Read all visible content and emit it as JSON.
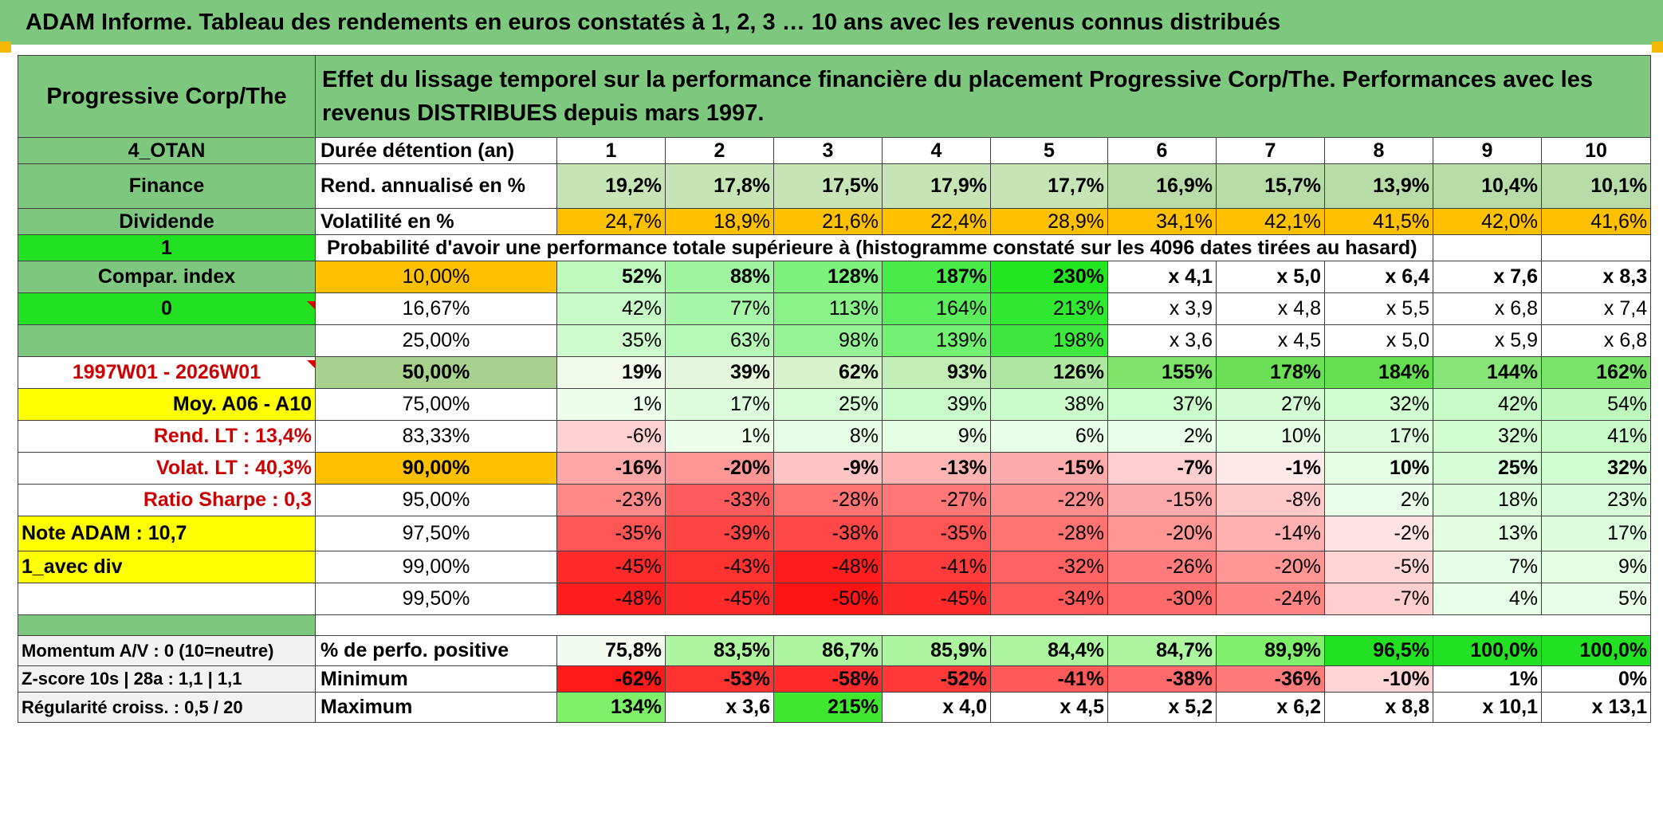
{
  "title": "ADAM Informe. Tableau des rendements en euros constatés à 1, 2, 3 … 10 ans avec les revenus connus distribués",
  "header": {
    "name": "Progressive Corp/The",
    "description": "Effet du lissage temporel sur la performance financière du placement Progressive Corp/The. Performances avec les revenus DISTRIBUES depuis mars 1997."
  },
  "side": {
    "code": "4_OTAN",
    "sector": "Finance",
    "type": "Dividende",
    "flag1": "1",
    "compar_index": "Compar. index",
    "flag0": "0",
    "blank": "",
    "period": "1997W01 - 2026W01",
    "moy": "Moy. A06 - A10",
    "rend_lt": "Rend. LT :    13,4%",
    "volat_lt": "Volat. LT :    40,3%",
    "sharpe": "Ratio Sharpe :    0,3",
    "note": "Note ADAM : 10,7",
    "avec_div": "1_avec div",
    "momentum": "Momentum A/V : 0 (10=neutre)",
    "zscore": "Z-score 10s | 28a : 1,1 | 1,1",
    "regularite": "Régularité croiss. : 0,5 / 20"
  },
  "rows": {
    "duree_label": "Durée détention (an)",
    "years": [
      "1",
      "2",
      "3",
      "4",
      "5",
      "6",
      "7",
      "8",
      "9",
      "10"
    ],
    "rend_label": "Rend. annualisé en %",
    "rend": [
      "19,2%",
      "17,8%",
      "17,5%",
      "17,9%",
      "17,7%",
      "16,9%",
      "15,7%",
      "13,9%",
      "10,4%",
      "10,1%"
    ],
    "volat_label": "Volatilité en %",
    "volat": [
      "24,7%",
      "18,9%",
      "21,6%",
      "22,4%",
      "28,9%",
      "34,1%",
      "42,1%",
      "41,5%",
      "42,0%",
      "41,6%"
    ],
    "prob_label": "Probabilité d'avoir une performance totale supérieure à (histogramme constaté sur les 4096 dates tirées au hasard)",
    "quantiles": [
      {
        "q": "10,00%",
        "v": [
          "52%",
          "88%",
          "128%",
          "187%",
          "230%",
          "x 4,1",
          "x 5,0",
          "x 6,4",
          "x 7,6",
          "x 8,3"
        ]
      },
      {
        "q": "16,67%",
        "v": [
          "42%",
          "77%",
          "113%",
          "164%",
          "213%",
          "x 3,9",
          "x 4,8",
          "x 5,5",
          "x 6,8",
          "x 7,4"
        ]
      },
      {
        "q": "25,00%",
        "v": [
          "35%",
          "63%",
          "98%",
          "139%",
          "198%",
          "x 3,6",
          "x 4,5",
          "x 5,0",
          "x 5,9",
          "x 6,8"
        ]
      },
      {
        "q": "50,00%",
        "v": [
          "19%",
          "39%",
          "62%",
          "93%",
          "126%",
          "155%",
          "178%",
          "184%",
          "144%",
          "162%"
        ]
      },
      {
        "q": "75,00%",
        "v": [
          "1%",
          "17%",
          "25%",
          "39%",
          "38%",
          "37%",
          "27%",
          "32%",
          "42%",
          "54%"
        ]
      },
      {
        "q": "83,33%",
        "v": [
          "-6%",
          "1%",
          "8%",
          "9%",
          "6%",
          "2%",
          "10%",
          "17%",
          "32%",
          "41%"
        ]
      },
      {
        "q": "90,00%",
        "v": [
          "-16%",
          "-20%",
          "-9%",
          "-13%",
          "-15%",
          "-7%",
          "-1%",
          "10%",
          "25%",
          "32%"
        ]
      },
      {
        "q": "95,00%",
        "v": [
          "-23%",
          "-33%",
          "-28%",
          "-27%",
          "-22%",
          "-15%",
          "-8%",
          "2%",
          "18%",
          "23%"
        ]
      },
      {
        "q": "97,50%",
        "v": [
          "-35%",
          "-39%",
          "-38%",
          "-35%",
          "-28%",
          "-20%",
          "-14%",
          "-2%",
          "13%",
          "17%"
        ]
      },
      {
        "q": "99,00%",
        "v": [
          "-45%",
          "-43%",
          "-48%",
          "-41%",
          "-32%",
          "-26%",
          "-20%",
          "-5%",
          "7%",
          "9%"
        ]
      },
      {
        "q": "99,50%",
        "v": [
          "-48%",
          "-45%",
          "-50%",
          "-45%",
          "-34%",
          "-30%",
          "-24%",
          "-7%",
          "4%",
          "5%"
        ]
      }
    ],
    "pos_label": "% de perfo. positive",
    "pos": [
      "75,8%",
      "83,5%",
      "86,7%",
      "85,9%",
      "84,4%",
      "84,7%",
      "89,9%",
      "96,5%",
      "100,0%",
      "100,0%"
    ],
    "min_label": "Minimum",
    "min": [
      "-62%",
      "-53%",
      "-58%",
      "-52%",
      "-41%",
      "-38%",
      "-36%",
      "-10%",
      "1%",
      "0%"
    ],
    "max_label": "Maximum",
    "max": [
      "134%",
      "x 3,6",
      "215%",
      "x 4,0",
      "x 4,5",
      "x 5,2",
      "x 6,2",
      "x 8,8",
      "x 10,1",
      "x 13,1"
    ]
  },
  "colors": {
    "header_green": "#7dc87e",
    "bright_green": "#22e022",
    "yellow": "#ffff00",
    "orange": "#ffc000",
    "red": "#ff0000"
  }
}
